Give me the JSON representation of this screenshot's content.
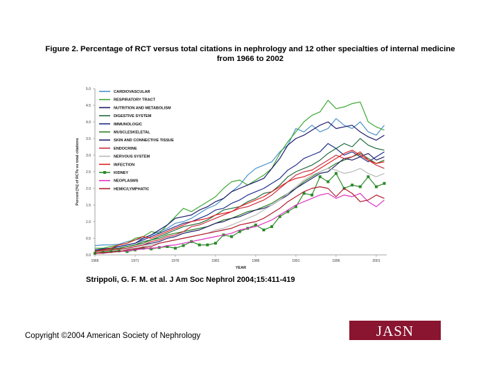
{
  "page": {
    "title_line1": "Figure 2. Percentage of RCT versus total citations in nephrology and 12 other specialties of internal medicine",
    "title_line2": "from 1966 to 2002",
    "citation": "Strippoli, G. F. M. et al. J Am Soc Nephrol 2004;15:411-419",
    "copyright": "Copyright ©2004 American Society of Nephrology",
    "logo": "JASN"
  },
  "chart_data": {
    "type": "line",
    "title": "",
    "xlabel": "YEAR",
    "ylabel": "Percent [%] of RCTs vs total citations",
    "x": [
      1966,
      1967,
      1968,
      1969,
      1970,
      1971,
      1972,
      1973,
      1974,
      1975,
      1976,
      1977,
      1978,
      1979,
      1980,
      1981,
      1982,
      1983,
      1984,
      1985,
      1986,
      1987,
      1988,
      1989,
      1990,
      1991,
      1992,
      1993,
      1994,
      1995,
      1996,
      1997,
      1998,
      1999,
      2000,
      2001,
      2002
    ],
    "xlim": [
      1966,
      2002.3
    ],
    "ylim": [
      0,
      5.0
    ],
    "xticks": [
      "1966",
      "1971",
      "1976",
      "1981",
      "1986",
      "1991",
      "1996",
      "2001"
    ],
    "yticks": [
      "0.0",
      "0.5",
      "1.0",
      "1.5",
      "2.0",
      "2.5",
      "3.0",
      "3.5",
      "4.0",
      "4.5",
      "5.0"
    ],
    "legend_position": "top-left",
    "series": [
      {
        "name": "CARDIOVASCULAR",
        "color": "#4a90c8",
        "values": [
          0.28,
          0.3,
          0.3,
          0.32,
          0.4,
          0.45,
          0.5,
          0.6,
          0.7,
          0.8,
          0.95,
          1.0,
          1.1,
          1.25,
          1.4,
          1.5,
          1.7,
          1.9,
          2.1,
          2.4,
          2.6,
          2.7,
          2.8,
          3.1,
          3.3,
          3.8,
          3.7,
          3.9,
          3.7,
          3.8,
          4.1,
          3.9,
          3.8,
          4.0,
          3.7,
          3.6,
          3.9
        ]
      },
      {
        "name": "RESPIRATORY TRACT",
        "color": "#3aa832",
        "values": [
          0.2,
          0.2,
          0.25,
          0.3,
          0.35,
          0.5,
          0.55,
          0.7,
          0.65,
          0.9,
          1.15,
          1.4,
          1.3,
          1.45,
          1.6,
          1.75,
          2.0,
          2.2,
          2.25,
          2.1,
          2.25,
          2.4,
          2.6,
          3.05,
          3.4,
          3.7,
          4.0,
          4.2,
          4.3,
          4.65,
          4.4,
          4.45,
          4.55,
          4.6,
          4.0,
          3.85,
          3.75
        ]
      },
      {
        "name": "NUTRITION AND METABOLISM",
        "color": "#1a1a6a",
        "values": [
          0.15,
          0.18,
          0.2,
          0.25,
          0.3,
          0.35,
          0.5,
          0.6,
          0.75,
          0.9,
          1.1,
          1.15,
          1.2,
          1.35,
          1.45,
          1.6,
          1.7,
          1.9,
          2.0,
          2.1,
          2.2,
          2.3,
          2.6,
          2.9,
          3.3,
          3.5,
          3.6,
          3.75,
          3.9,
          4.0,
          3.8,
          3.85,
          3.9,
          3.7,
          3.55,
          3.45,
          3.6
        ]
      },
      {
        "name": "DIGESTIVE SYSTEM",
        "color": "#1f6a3a",
        "values": [
          0.1,
          0.12,
          0.15,
          0.2,
          0.25,
          0.3,
          0.4,
          0.45,
          0.55,
          0.65,
          0.75,
          0.85,
          0.9,
          0.95,
          1.05,
          1.2,
          1.35,
          1.4,
          1.45,
          1.6,
          1.7,
          1.85,
          1.9,
          2.1,
          2.35,
          2.5,
          2.6,
          2.7,
          2.85,
          3.05,
          3.2,
          3.35,
          3.25,
          3.5,
          3.3,
          3.2,
          3.15
        ]
      },
      {
        "name": "IMMUNOLOGIC",
        "color": "#1e2e8a",
        "values": [
          0.15,
          0.15,
          0.2,
          0.25,
          0.3,
          0.35,
          0.45,
          0.55,
          0.65,
          0.75,
          0.85,
          0.95,
          1.0,
          1.1,
          1.2,
          1.35,
          1.4,
          1.55,
          1.65,
          1.8,
          1.9,
          2.0,
          2.15,
          2.3,
          2.55,
          2.7,
          2.9,
          3.0,
          3.1,
          3.35,
          3.2,
          3.0,
          3.1,
          2.95,
          2.8,
          2.95,
          3.1
        ]
      },
      {
        "name": "MUSCLESKELETAL",
        "color": "#2a7a22",
        "values": [
          0.12,
          0.15,
          0.18,
          0.2,
          0.25,
          0.3,
          0.35,
          0.45,
          0.5,
          0.6,
          0.65,
          0.7,
          0.75,
          0.8,
          0.85,
          0.95,
          1.05,
          1.1,
          1.2,
          1.3,
          1.35,
          1.45,
          1.55,
          1.7,
          1.85,
          2.0,
          2.2,
          2.35,
          2.5,
          2.6,
          2.75,
          2.85,
          2.95,
          3.05,
          2.9,
          2.75,
          2.85
        ]
      },
      {
        "name": "SKIN AND CONNECTIVE TISSUE",
        "color": "#20206a",
        "values": [
          0.1,
          0.1,
          0.12,
          0.15,
          0.2,
          0.25,
          0.3,
          0.35,
          0.4,
          0.5,
          0.55,
          0.65,
          0.7,
          0.75,
          0.85,
          0.95,
          1.0,
          1.1,
          1.15,
          1.25,
          1.35,
          1.4,
          1.5,
          1.65,
          1.8,
          2.0,
          2.15,
          2.3,
          2.45,
          2.5,
          2.7,
          2.9,
          2.85,
          2.95,
          3.05,
          2.85,
          2.95
        ]
      },
      {
        "name": "ENDOCRINE",
        "color": "#c83040",
        "values": [
          0.1,
          0.12,
          0.15,
          0.18,
          0.2,
          0.25,
          0.3,
          0.4,
          0.45,
          0.55,
          0.6,
          0.7,
          0.85,
          0.9,
          1.0,
          1.1,
          1.2,
          1.3,
          1.4,
          1.45,
          1.55,
          1.65,
          1.8,
          2.0,
          2.2,
          2.4,
          2.5,
          2.55,
          2.7,
          2.85,
          3.0,
          2.9,
          2.95,
          3.1,
          2.85,
          2.7,
          2.6
        ]
      },
      {
        "name": "NERVOUS SYSTEM",
        "color": "#b8b8b8",
        "values": [
          0.08,
          0.1,
          0.12,
          0.15,
          0.18,
          0.2,
          0.25,
          0.3,
          0.35,
          0.4,
          0.45,
          0.5,
          0.55,
          0.6,
          0.65,
          0.75,
          0.8,
          0.9,
          1.0,
          1.1,
          1.2,
          1.35,
          1.5,
          1.65,
          1.85,
          2.05,
          2.25,
          2.4,
          2.5,
          2.6,
          2.55,
          2.45,
          2.5,
          2.6,
          2.45,
          2.35,
          2.45
        ]
      },
      {
        "name": "INFECTION",
        "color": "#e02020",
        "values": [
          0.1,
          0.15,
          0.2,
          0.3,
          0.35,
          0.45,
          0.55,
          0.5,
          0.6,
          0.7,
          0.8,
          0.9,
          1.0,
          1.05,
          1.1,
          1.2,
          1.25,
          1.3,
          1.45,
          1.55,
          1.65,
          1.75,
          1.9,
          2.05,
          2.2,
          2.3,
          2.35,
          2.45,
          2.6,
          2.75,
          2.9,
          3.05,
          3.15,
          3.0,
          2.85,
          2.75,
          2.8
        ]
      },
      {
        "name": "KIDNEY",
        "color": "#2a8a2a",
        "values": [
          0.05,
          0.08,
          0.1,
          0.12,
          0.1,
          0.15,
          0.2,
          0.18,
          0.22,
          0.25,
          0.2,
          0.28,
          0.4,
          0.3,
          0.3,
          0.35,
          0.6,
          0.55,
          0.7,
          0.8,
          0.9,
          0.75,
          0.85,
          1.15,
          1.3,
          1.45,
          1.85,
          1.8,
          2.35,
          2.2,
          2.45,
          2.0,
          2.1,
          2.05,
          2.35,
          2.05,
          2.15
        ]
      },
      {
        "name": "NEOPLASMS",
        "color": "#e030c0",
        "values": [
          0.05,
          0.05,
          0.08,
          0.1,
          0.12,
          0.15,
          0.18,
          0.2,
          0.22,
          0.28,
          0.3,
          0.35,
          0.4,
          0.45,
          0.5,
          0.55,
          0.6,
          0.65,
          0.75,
          0.8,
          0.85,
          0.95,
          1.05,
          1.2,
          1.35,
          1.5,
          1.6,
          1.7,
          1.8,
          1.85,
          1.7,
          1.8,
          1.75,
          1.85,
          1.6,
          1.45,
          1.65
        ]
      },
      {
        "name": "HEMIC/LYMPHATIC",
        "color": "#b01828",
        "values": [
          0.05,
          0.06,
          0.08,
          0.1,
          0.15,
          0.18,
          0.22,
          0.25,
          0.35,
          0.4,
          0.45,
          0.5,
          0.55,
          0.6,
          0.65,
          0.7,
          0.75,
          0.8,
          0.9,
          0.95,
          1.0,
          1.1,
          1.25,
          1.4,
          1.6,
          1.75,
          1.9,
          2.0,
          2.05,
          2.0,
          1.75,
          2.0,
          1.85,
          1.6,
          1.65,
          1.8,
          1.7
        ]
      }
    ]
  }
}
